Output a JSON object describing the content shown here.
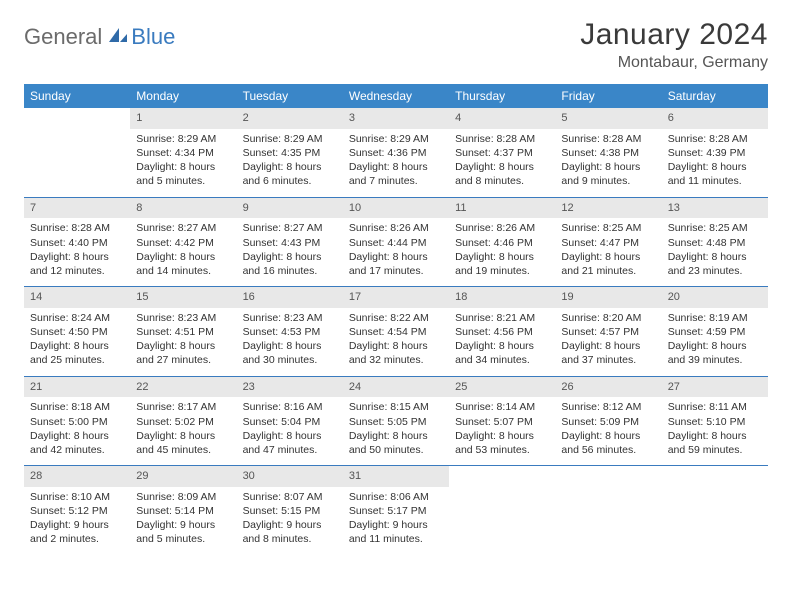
{
  "logo": {
    "text1": "General",
    "text2": "Blue"
  },
  "title": "January 2024",
  "location": "Montabaur, Germany",
  "colors": {
    "header_bg": "#3a86c8",
    "header_text": "#ffffff",
    "daynum_bg": "#e8e8e8",
    "rule": "#3a7bbf",
    "logo_gray": "#6b6b6b",
    "logo_blue": "#3a7bbf"
  },
  "day_headers": [
    "Sunday",
    "Monday",
    "Tuesday",
    "Wednesday",
    "Thursday",
    "Friday",
    "Saturday"
  ],
  "weeks": [
    [
      {
        "n": "",
        "sunrise": "",
        "sunset": "",
        "daylight": ""
      },
      {
        "n": "1",
        "sunrise": "Sunrise: 8:29 AM",
        "sunset": "Sunset: 4:34 PM",
        "daylight": "Daylight: 8 hours and 5 minutes."
      },
      {
        "n": "2",
        "sunrise": "Sunrise: 8:29 AM",
        "sunset": "Sunset: 4:35 PM",
        "daylight": "Daylight: 8 hours and 6 minutes."
      },
      {
        "n": "3",
        "sunrise": "Sunrise: 8:29 AM",
        "sunset": "Sunset: 4:36 PM",
        "daylight": "Daylight: 8 hours and 7 minutes."
      },
      {
        "n": "4",
        "sunrise": "Sunrise: 8:28 AM",
        "sunset": "Sunset: 4:37 PM",
        "daylight": "Daylight: 8 hours and 8 minutes."
      },
      {
        "n": "5",
        "sunrise": "Sunrise: 8:28 AM",
        "sunset": "Sunset: 4:38 PM",
        "daylight": "Daylight: 8 hours and 9 minutes."
      },
      {
        "n": "6",
        "sunrise": "Sunrise: 8:28 AM",
        "sunset": "Sunset: 4:39 PM",
        "daylight": "Daylight: 8 hours and 11 minutes."
      }
    ],
    [
      {
        "n": "7",
        "sunrise": "Sunrise: 8:28 AM",
        "sunset": "Sunset: 4:40 PM",
        "daylight": "Daylight: 8 hours and 12 minutes."
      },
      {
        "n": "8",
        "sunrise": "Sunrise: 8:27 AM",
        "sunset": "Sunset: 4:42 PM",
        "daylight": "Daylight: 8 hours and 14 minutes."
      },
      {
        "n": "9",
        "sunrise": "Sunrise: 8:27 AM",
        "sunset": "Sunset: 4:43 PM",
        "daylight": "Daylight: 8 hours and 16 minutes."
      },
      {
        "n": "10",
        "sunrise": "Sunrise: 8:26 AM",
        "sunset": "Sunset: 4:44 PM",
        "daylight": "Daylight: 8 hours and 17 minutes."
      },
      {
        "n": "11",
        "sunrise": "Sunrise: 8:26 AM",
        "sunset": "Sunset: 4:46 PM",
        "daylight": "Daylight: 8 hours and 19 minutes."
      },
      {
        "n": "12",
        "sunrise": "Sunrise: 8:25 AM",
        "sunset": "Sunset: 4:47 PM",
        "daylight": "Daylight: 8 hours and 21 minutes."
      },
      {
        "n": "13",
        "sunrise": "Sunrise: 8:25 AM",
        "sunset": "Sunset: 4:48 PM",
        "daylight": "Daylight: 8 hours and 23 minutes."
      }
    ],
    [
      {
        "n": "14",
        "sunrise": "Sunrise: 8:24 AM",
        "sunset": "Sunset: 4:50 PM",
        "daylight": "Daylight: 8 hours and 25 minutes."
      },
      {
        "n": "15",
        "sunrise": "Sunrise: 8:23 AM",
        "sunset": "Sunset: 4:51 PM",
        "daylight": "Daylight: 8 hours and 27 minutes."
      },
      {
        "n": "16",
        "sunrise": "Sunrise: 8:23 AM",
        "sunset": "Sunset: 4:53 PM",
        "daylight": "Daylight: 8 hours and 30 minutes."
      },
      {
        "n": "17",
        "sunrise": "Sunrise: 8:22 AM",
        "sunset": "Sunset: 4:54 PM",
        "daylight": "Daylight: 8 hours and 32 minutes."
      },
      {
        "n": "18",
        "sunrise": "Sunrise: 8:21 AM",
        "sunset": "Sunset: 4:56 PM",
        "daylight": "Daylight: 8 hours and 34 minutes."
      },
      {
        "n": "19",
        "sunrise": "Sunrise: 8:20 AM",
        "sunset": "Sunset: 4:57 PM",
        "daylight": "Daylight: 8 hours and 37 minutes."
      },
      {
        "n": "20",
        "sunrise": "Sunrise: 8:19 AM",
        "sunset": "Sunset: 4:59 PM",
        "daylight": "Daylight: 8 hours and 39 minutes."
      }
    ],
    [
      {
        "n": "21",
        "sunrise": "Sunrise: 8:18 AM",
        "sunset": "Sunset: 5:00 PM",
        "daylight": "Daylight: 8 hours and 42 minutes."
      },
      {
        "n": "22",
        "sunrise": "Sunrise: 8:17 AM",
        "sunset": "Sunset: 5:02 PM",
        "daylight": "Daylight: 8 hours and 45 minutes."
      },
      {
        "n": "23",
        "sunrise": "Sunrise: 8:16 AM",
        "sunset": "Sunset: 5:04 PM",
        "daylight": "Daylight: 8 hours and 47 minutes."
      },
      {
        "n": "24",
        "sunrise": "Sunrise: 8:15 AM",
        "sunset": "Sunset: 5:05 PM",
        "daylight": "Daylight: 8 hours and 50 minutes."
      },
      {
        "n": "25",
        "sunrise": "Sunrise: 8:14 AM",
        "sunset": "Sunset: 5:07 PM",
        "daylight": "Daylight: 8 hours and 53 minutes."
      },
      {
        "n": "26",
        "sunrise": "Sunrise: 8:12 AM",
        "sunset": "Sunset: 5:09 PM",
        "daylight": "Daylight: 8 hours and 56 minutes."
      },
      {
        "n": "27",
        "sunrise": "Sunrise: 8:11 AM",
        "sunset": "Sunset: 5:10 PM",
        "daylight": "Daylight: 8 hours and 59 minutes."
      }
    ],
    [
      {
        "n": "28",
        "sunrise": "Sunrise: 8:10 AM",
        "sunset": "Sunset: 5:12 PM",
        "daylight": "Daylight: 9 hours and 2 minutes."
      },
      {
        "n": "29",
        "sunrise": "Sunrise: 8:09 AM",
        "sunset": "Sunset: 5:14 PM",
        "daylight": "Daylight: 9 hours and 5 minutes."
      },
      {
        "n": "30",
        "sunrise": "Sunrise: 8:07 AM",
        "sunset": "Sunset: 5:15 PM",
        "daylight": "Daylight: 9 hours and 8 minutes."
      },
      {
        "n": "31",
        "sunrise": "Sunrise: 8:06 AM",
        "sunset": "Sunset: 5:17 PM",
        "daylight": "Daylight: 9 hours and 11 minutes."
      },
      {
        "n": "",
        "sunrise": "",
        "sunset": "",
        "daylight": ""
      },
      {
        "n": "",
        "sunrise": "",
        "sunset": "",
        "daylight": ""
      },
      {
        "n": "",
        "sunrise": "",
        "sunset": "",
        "daylight": ""
      }
    ]
  ]
}
